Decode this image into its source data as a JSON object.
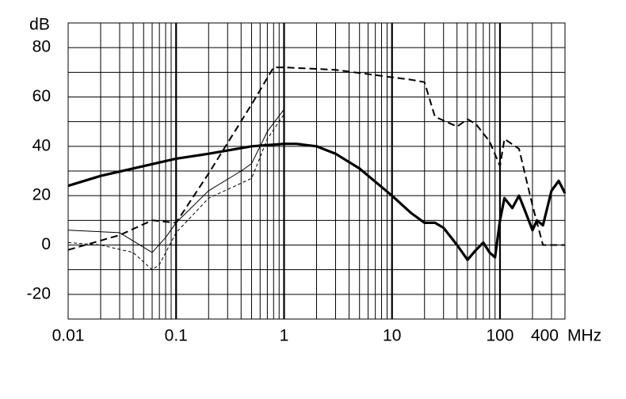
{
  "chart_data": {
    "type": "line",
    "y_label": "dB",
    "x_unit": "MHz",
    "x_scale": "log",
    "grid": true,
    "xlim": [
      0.01,
      400
    ],
    "xticks": [
      0.01,
      0.1,
      1,
      10,
      100,
      400
    ],
    "ylim": [
      -30,
      90
    ],
    "yticks": [
      -20,
      0,
      20,
      40,
      60,
      80
    ],
    "series": [
      {
        "color": "#000000",
        "style": "thick",
        "x": [
          0.01,
          0.02,
          0.05,
          0.1,
          0.2,
          0.5,
          1,
          1.3,
          2,
          3,
          5,
          10,
          15,
          20,
          25,
          30,
          40,
          50,
          60,
          70,
          80,
          90,
          100,
          110,
          130,
          150,
          170,
          200,
          220,
          250,
          300,
          350,
          400
        ],
        "values": [
          24,
          28,
          32,
          35,
          37,
          40,
          41,
          41,
          40,
          37,
          31,
          20,
          13,
          9,
          9,
          7,
          0,
          -6,
          -2,
          1,
          -3,
          -5,
          10,
          19,
          15,
          20,
          14,
          6,
          10,
          8,
          22,
          26,
          21
        ]
      },
      {
        "color": "#000000",
        "style": "dashed",
        "x": [
          0.01,
          0.03,
          0.06,
          0.1,
          0.2,
          0.5,
          0.8,
          1,
          3,
          10,
          15,
          20,
          25,
          40,
          50,
          60,
          80,
          100,
          110,
          150,
          200,
          250,
          400
        ],
        "values": [
          -2,
          4,
          10,
          9,
          29,
          57,
          72,
          72,
          71,
          68,
          67,
          66,
          52,
          48,
          51,
          49,
          42,
          32,
          43,
          39,
          16,
          0,
          0
        ]
      },
      {
        "color": "#000000",
        "style": "thin",
        "x": [
          0.01,
          0.03,
          0.06,
          0.08,
          0.1,
          0.2,
          0.4,
          0.5,
          0.7,
          1
        ],
        "values": [
          6,
          5,
          -3,
          3,
          9,
          22,
          30,
          33,
          46,
          55
        ]
      },
      {
        "color": "#000000",
        "style": "thin-dashed",
        "x": [
          0.01,
          0.02,
          0.04,
          0.06,
          0.07,
          0.1,
          0.2,
          0.5,
          0.7,
          1
        ],
        "values": [
          1,
          0,
          -3,
          -10,
          -8,
          5,
          19,
          27,
          43,
          53
        ]
      }
    ]
  }
}
